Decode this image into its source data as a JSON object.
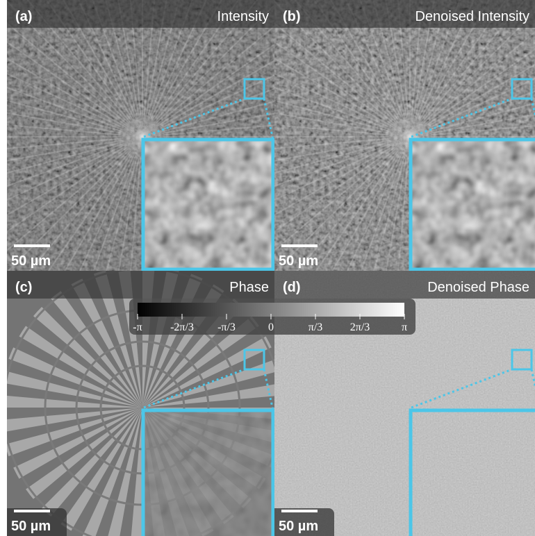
{
  "panels": [
    {
      "label": "(a)",
      "title": "Intensity",
      "scale_bar": "50 µm"
    },
    {
      "label": "(b)",
      "title": "Denoised Intensity",
      "scale_bar": "50 µm"
    },
    {
      "label": "(c)",
      "title": "Phase",
      "scale_bar": "50 µm"
    },
    {
      "label": "(d)",
      "title": "Denoised Phase",
      "scale_bar": "50 µm"
    }
  ],
  "colorbar": {
    "ticks": [
      "-π",
      "-2π/3",
      "-π/3",
      "0",
      "π/3",
      "2π/3",
      "π"
    ]
  }
}
